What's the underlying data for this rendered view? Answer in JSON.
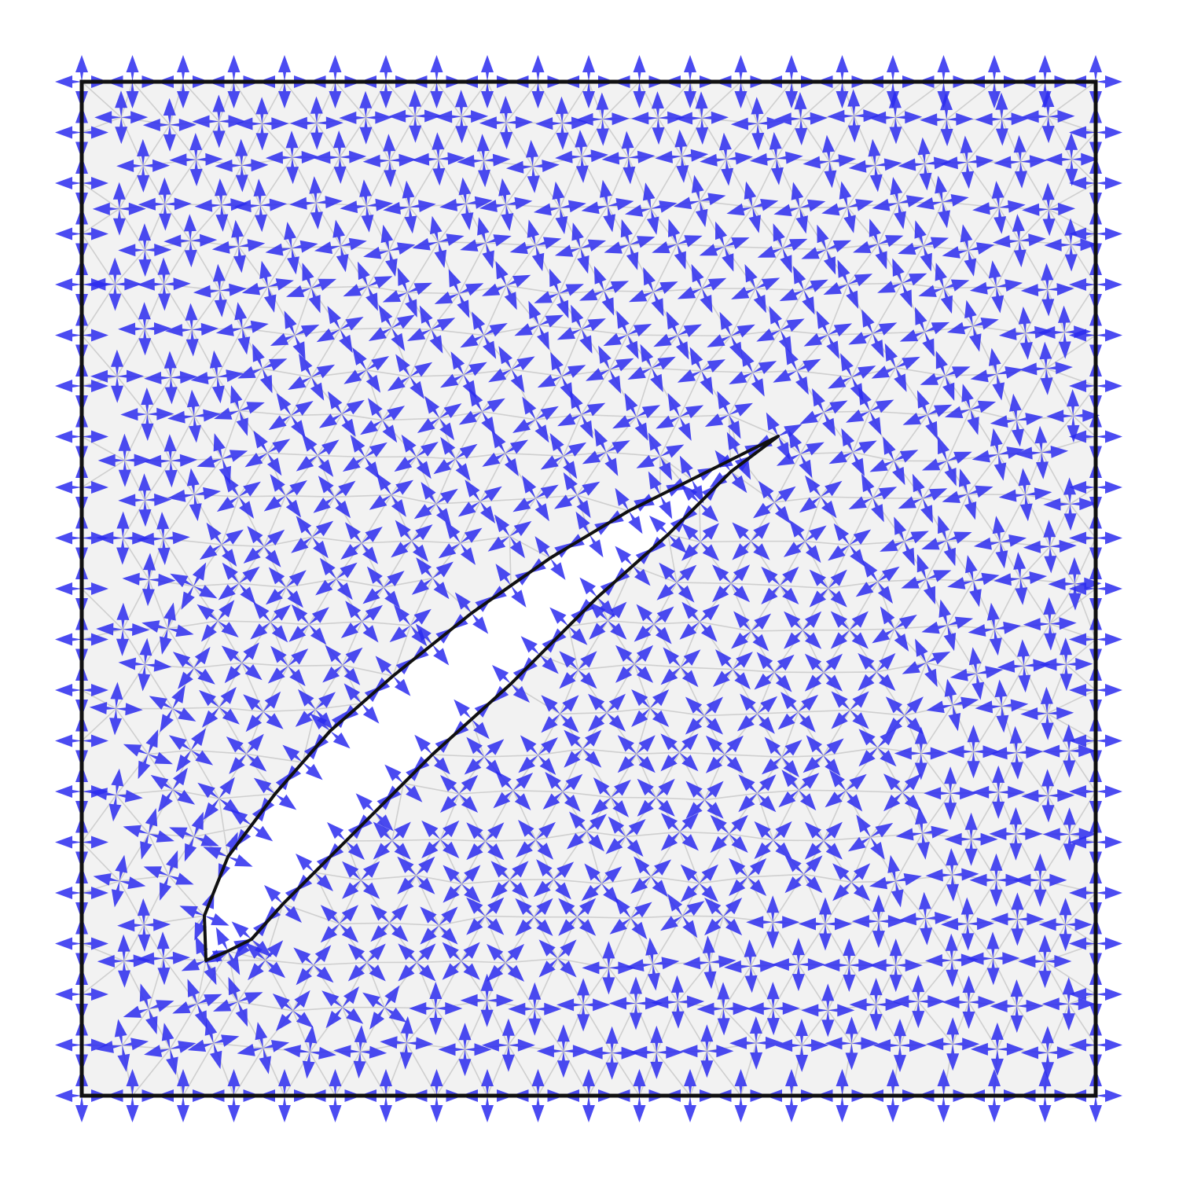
{
  "figure": {
    "kind": "cross-field visualization on a triangular mesh of a square domain with an airfoil-shaped hole",
    "colors": {
      "background": "#ffffff",
      "domain_fill": "#f2f2f2",
      "mesh_edges": "#cfcfcf",
      "cross_arrows": "#2b2bef",
      "boundary": "#111111",
      "hole_fill": "#ffffff"
    },
    "mesh": {
      "shown": true
    },
    "cross_field": {
      "arrows_per_node": 4,
      "boundary_alignment": "normal_and_tangent"
    },
    "hole": {
      "shape": "cambered blade / airfoil"
    }
  }
}
